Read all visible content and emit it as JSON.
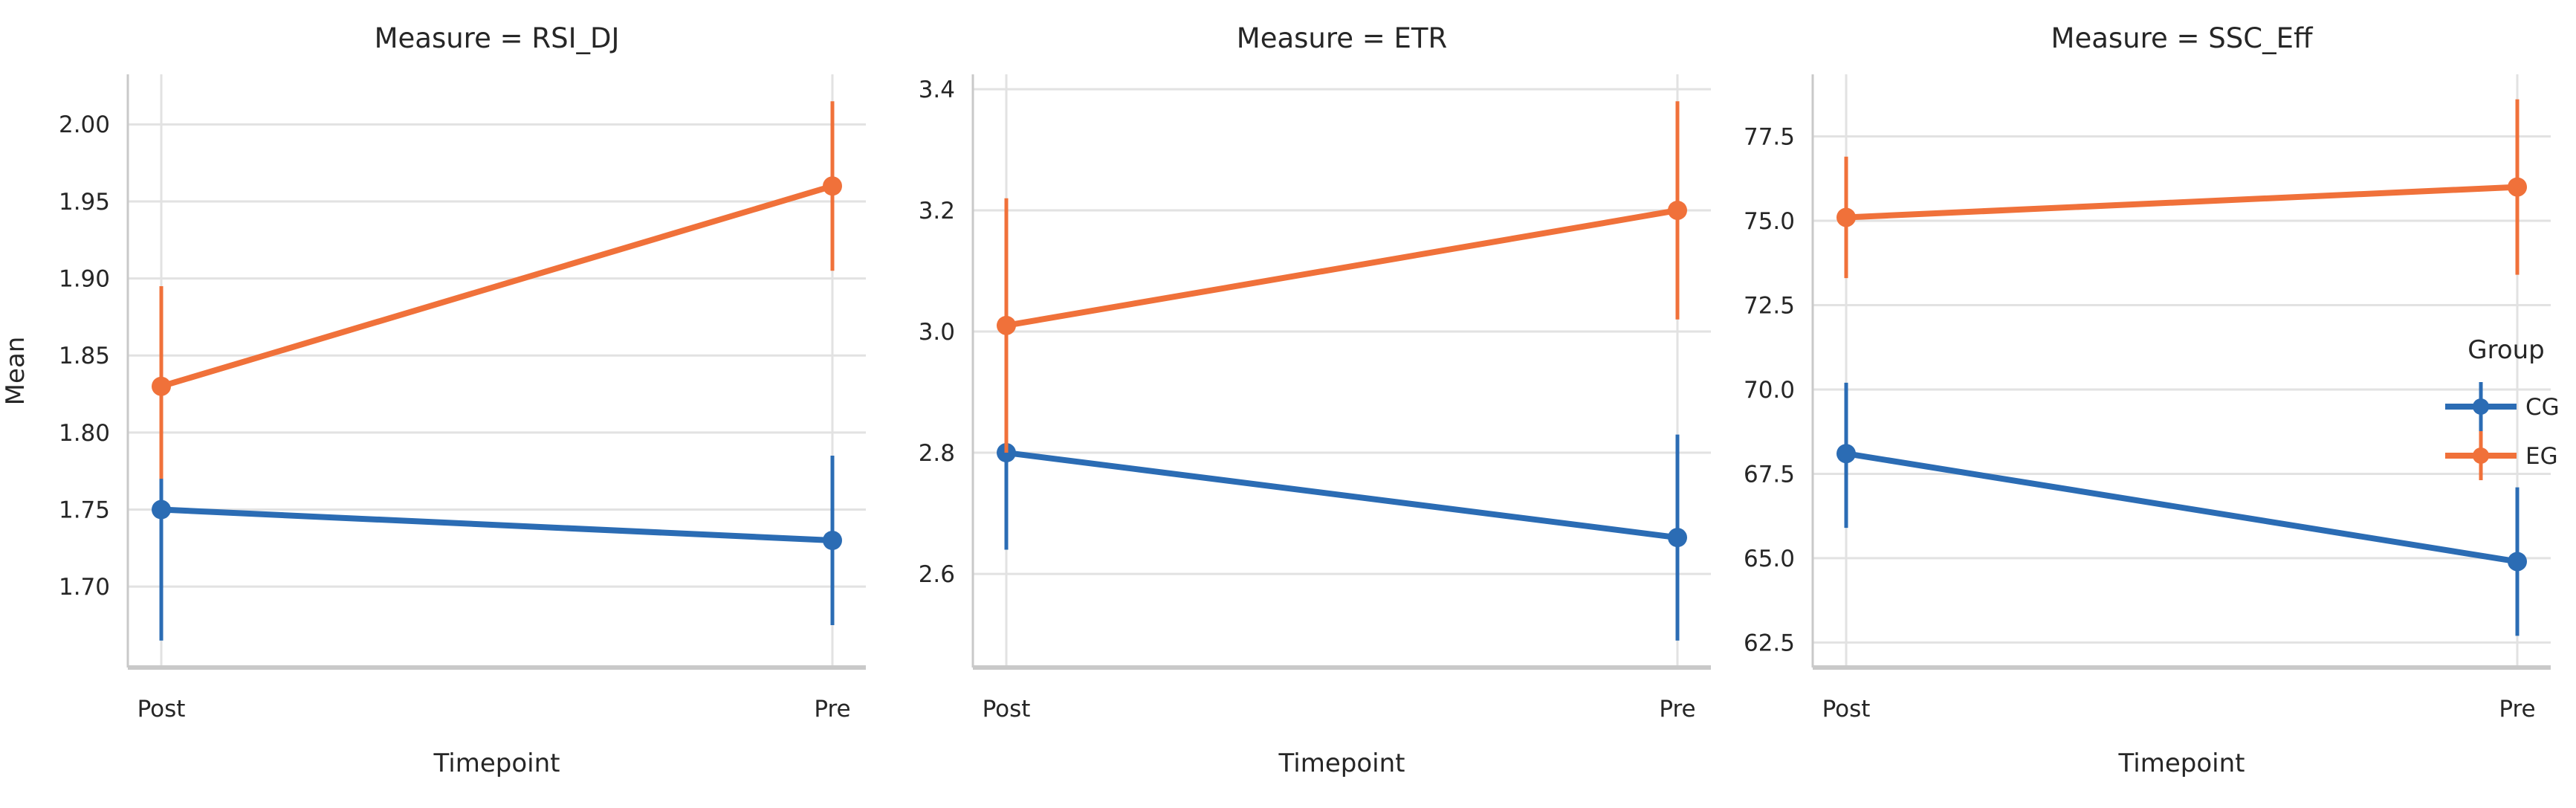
{
  "chart_data": {
    "type": "line",
    "subtype": "pointplot-with-error-bars",
    "x_categories": [
      "Post",
      "Pre"
    ],
    "xlabel": "Timepoint",
    "ylabel": "Mean",
    "grid": true,
    "style": {
      "background": "#ffffff",
      "grid_color": "#e2e2e2",
      "spine_color": "#c9c9c9",
      "text_color": "#262626"
    },
    "legend": {
      "title": "Group",
      "position": "right",
      "entries": [
        {
          "label": "CG",
          "color": "#2b6cb4"
        },
        {
          "label": "EG",
          "color": "#f0713a"
        }
      ]
    },
    "groups": [
      {
        "name": "CG",
        "color": "#2b6cb4"
      },
      {
        "name": "EG",
        "color": "#f0713a"
      }
    ],
    "facets": [
      {
        "title": "Measure = RSI_DJ",
        "ylim": [
          1.6475,
          2.0325
        ],
        "ytick_values": [
          1.7,
          1.75,
          1.8,
          1.85,
          1.9,
          1.95,
          2.0
        ],
        "ytick_labels": [
          "1.70",
          "1.75",
          "1.80",
          "1.85",
          "1.90",
          "1.95",
          "2.00"
        ],
        "series": [
          {
            "group": "CG",
            "means": [
              1.75,
              1.73
            ],
            "ci_low": [
              1.665,
              1.675
            ],
            "ci_high": [
              1.835,
              1.785
            ]
          },
          {
            "group": "EG",
            "means": [
              1.83,
              1.96
            ],
            "ci_low": [
              1.77,
              1.905
            ],
            "ci_high": [
              1.895,
              2.015
            ]
          }
        ]
      },
      {
        "title": "Measure = ETR",
        "ylim": [
          2.4455,
          3.4245
        ],
        "ytick_values": [
          2.6,
          2.8,
          3.0,
          3.2,
          3.4
        ],
        "ytick_labels": [
          "2.6",
          "2.8",
          "3.0",
          "3.2",
          "3.4"
        ],
        "series": [
          {
            "group": "CG",
            "means": [
              2.8,
              2.66
            ],
            "ci_low": [
              2.64,
              2.49
            ],
            "ci_high": [
              2.96,
              2.83
            ]
          },
          {
            "group": "EG",
            "means": [
              3.01,
              3.2
            ],
            "ci_low": [
              2.8,
              3.02
            ],
            "ci_high": [
              3.22,
              3.38
            ]
          }
        ]
      },
      {
        "title": "Measure = SSC_Eff",
        "ylim": [
          61.76,
          79.34
        ],
        "ytick_values": [
          62.5,
          65.0,
          67.5,
          70.0,
          72.5,
          75.0,
          77.5
        ],
        "ytick_labels": [
          "62.5",
          "65.0",
          "67.5",
          "70.0",
          "72.5",
          "75.0",
          "77.5"
        ],
        "series": [
          {
            "group": "CG",
            "means": [
              68.1,
              64.9
            ],
            "ci_low": [
              65.9,
              62.7
            ],
            "ci_high": [
              70.2,
              67.1
            ]
          },
          {
            "group": "EG",
            "means": [
              75.1,
              76.0
            ],
            "ci_low": [
              73.3,
              73.4
            ],
            "ci_high": [
              76.9,
              78.6
            ]
          }
        ]
      }
    ]
  }
}
